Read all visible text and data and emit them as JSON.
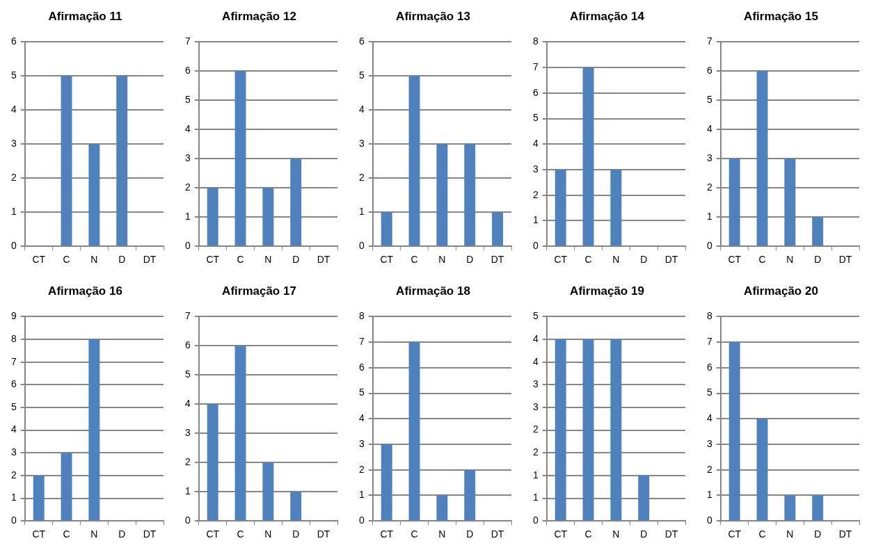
{
  "chart_data": [
    {
      "type": "bar",
      "title": "Afirmação 11",
      "categories": [
        "CT",
        "C",
        "N",
        "D",
        "DT"
      ],
      "values": [
        0,
        5,
        3,
        5,
        0
      ],
      "color": "#4f81bd",
      "ylim": [
        0,
        6
      ],
      "yticks": [
        0,
        1,
        2,
        3,
        4,
        5,
        6
      ],
      "grid": "y",
      "legend": false
    },
    {
      "type": "bar",
      "title": "Afirmação 12",
      "categories": [
        "CT",
        "C",
        "N",
        "D",
        "DT"
      ],
      "values": [
        2,
        6,
        2,
        3,
        0
      ],
      "color": "#4f81bd",
      "ylim": [
        0,
        7
      ],
      "yticks": [
        0,
        1,
        2,
        3,
        4,
        5,
        6,
        7
      ],
      "grid": "y",
      "legend": false
    },
    {
      "type": "bar",
      "title": "Afirmação 13",
      "categories": [
        "CT",
        "C",
        "N",
        "D",
        "DT"
      ],
      "values": [
        1,
        5,
        3,
        3,
        1
      ],
      "color": "#4f81bd",
      "ylim": [
        0,
        6
      ],
      "yticks": [
        0,
        1,
        2,
        3,
        4,
        5,
        6
      ],
      "grid": "y",
      "legend": false
    },
    {
      "type": "bar",
      "title": "Afirmação 14",
      "categories": [
        "CT",
        "C",
        "N",
        "D",
        "DT"
      ],
      "values": [
        3,
        7,
        3,
        0,
        0
      ],
      "color": "#4f81bd",
      "ylim": [
        0,
        8
      ],
      "yticks": [
        0,
        1,
        2,
        3,
        4,
        5,
        6,
        7,
        8
      ],
      "grid": "y",
      "legend": false
    },
    {
      "type": "bar",
      "title": "Afirmação 15",
      "categories": [
        "CT",
        "C",
        "N",
        "D",
        "DT"
      ],
      "values": [
        3,
        6,
        3,
        1,
        0
      ],
      "color": "#4f81bd",
      "ylim": [
        0,
        7
      ],
      "yticks": [
        0,
        1,
        2,
        3,
        4,
        5,
        6,
        7
      ],
      "grid": "y",
      "legend": false
    },
    {
      "type": "bar",
      "title": "Afirmação 16",
      "categories": [
        "CT",
        "C",
        "N",
        "D",
        "DT"
      ],
      "values": [
        2,
        3,
        8,
        0,
        0
      ],
      "color": "#4f81bd",
      "ylim": [
        0,
        9
      ],
      "yticks": [
        0,
        1,
        2,
        3,
        4,
        5,
        6,
        7,
        8,
        9
      ],
      "grid": "y",
      "legend": false
    },
    {
      "type": "bar",
      "title": "Afirmação 17",
      "categories": [
        "CT",
        "C",
        "N",
        "D",
        "DT"
      ],
      "values": [
        4,
        6,
        2,
        1,
        0
      ],
      "color": "#4f81bd",
      "ylim": [
        0,
        7
      ],
      "yticks": [
        0,
        1,
        2,
        3,
        4,
        5,
        6,
        7
      ],
      "grid": "y",
      "legend": false
    },
    {
      "type": "bar",
      "title": "Afirmação 18",
      "categories": [
        "CT",
        "C",
        "N",
        "D",
        "DT"
      ],
      "values": [
        3,
        7,
        1,
        2,
        0
      ],
      "color": "#4f81bd",
      "ylim": [
        0,
        8
      ],
      "yticks": [
        0,
        1,
        2,
        3,
        4,
        5,
        6,
        7,
        8
      ],
      "grid": "y",
      "legend": false
    },
    {
      "type": "bar",
      "title": "Afirmação 19",
      "categories": [
        "CT",
        "C",
        "N",
        "D",
        "DT"
      ],
      "values": [
        4,
        4,
        4,
        1,
        0
      ],
      "color": "#4f81bd",
      "ylim": [
        0,
        4.5
      ],
      "yticks": [
        0,
        {
          "value": 0.5,
          "label": "1"
        },
        1,
        {
          "value": 1.5,
          "label": "2"
        },
        2,
        {
          "value": 2.5,
          "label": "3"
        },
        3,
        {
          "value": 3.5,
          "label": "4"
        },
        4,
        {
          "value": 4.5,
          "label": "5"
        }
      ],
      "grid": "y",
      "legend": false
    },
    {
      "type": "bar",
      "title": "Afirmação 20",
      "categories": [
        "CT",
        "C",
        "N",
        "D",
        "DT"
      ],
      "values": [
        7,
        4,
        1,
        1,
        0
      ],
      "color": "#4f81bd",
      "ylim": [
        0,
        8
      ],
      "yticks": [
        0,
        1,
        2,
        3,
        4,
        5,
        6,
        7,
        8
      ],
      "grid": "y",
      "legend": false
    }
  ]
}
